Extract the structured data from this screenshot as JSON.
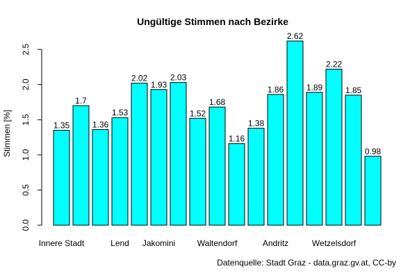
{
  "chart_data": {
    "type": "bar",
    "title": "Ungültige Stimmen nach Bezirke",
    "xlabel": "",
    "ylabel": "Stimmen [%]",
    "ylim": [
      0,
      2.62
    ],
    "yticks": [
      "0.0",
      "0.5",
      "1.0",
      "1.5",
      "2.0",
      "2.5"
    ],
    "categories": [
      "Innere Stadt",
      "",
      "",
      "Lend",
      "",
      "Jakomini",
      "",
      "",
      "Waltendorf",
      "",
      "",
      "Andritz",
      "",
      "",
      "Wetzelsdorf",
      "",
      ""
    ],
    "values": [
      1.35,
      1.7,
      1.36,
      1.53,
      2.02,
      1.93,
      2.03,
      1.52,
      1.68,
      1.16,
      1.38,
      1.86,
      2.62,
      1.89,
      2.22,
      1.85,
      0.98
    ],
    "value_labels": [
      "1.35",
      "1.7",
      "1.36",
      "1.53",
      "2.02",
      "1.93",
      "2.03",
      "1.52",
      "1.68",
      "1.16",
      "1.38",
      "1.86",
      "2.62",
      "1.89",
      "2.22",
      "1.85",
      "0.98"
    ],
    "bar_color": "#00ffff",
    "grid": false,
    "legend": "none"
  },
  "source": "Datenquelle: Stadt Graz - data.graz.gv.at, CC-by"
}
